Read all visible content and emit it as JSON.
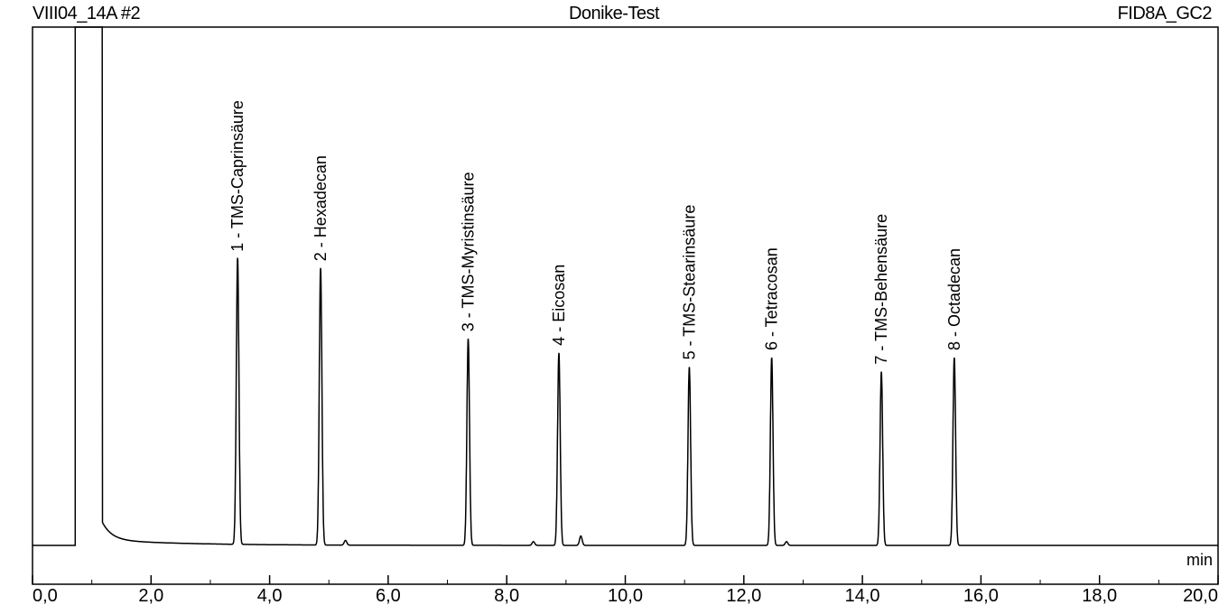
{
  "header": {
    "left": "VIII04_14A #2",
    "center": "Donike-Test",
    "right": "FID8A_GC2"
  },
  "chart_data": {
    "type": "line",
    "title": "Donike-Test",
    "xlabel": "min",
    "ylabel": "",
    "xlim": [
      0,
      20
    ],
    "x_ticks": [
      "0,0",
      "2,0",
      "4,0",
      "6,0",
      "8,0",
      "10,0",
      "12,0",
      "14,0",
      "16,0",
      "18,0",
      "20,0"
    ],
    "grid": false,
    "legend": "none",
    "series": [
      {
        "color": "#000000",
        "solvent_peak": {
          "start_min": 0.72,
          "apex_min": 1.15,
          "height_rel": 1.25
        },
        "peaks": [
          {
            "number": "1",
            "name": "TMS-Caprinsäure",
            "rt_min": 3.46,
            "height_rel": 0.61
          },
          {
            "number": "2",
            "name": "Hexadecan",
            "rt_min": 4.86,
            "height_rel": 0.59
          },
          {
            "number": "3",
            "name": "TMS-Myristinsäure",
            "rt_min": 7.35,
            "height_rel": 0.44
          },
          {
            "number": "4",
            "name": "Eicosan",
            "rt_min": 8.88,
            "height_rel": 0.41
          },
          {
            "number": "5",
            "name": "TMS-Stearinsäure",
            "rt_min": 11.08,
            "height_rel": 0.38
          },
          {
            "number": "6",
            "name": "Tetracosan",
            "rt_min": 12.47,
            "height_rel": 0.4
          },
          {
            "number": "7",
            "name": "TMS-Behensäure",
            "rt_min": 14.32,
            "height_rel": 0.37
          },
          {
            "number": "8",
            "name": "Octadecan",
            "rt_min": 15.55,
            "height_rel": 0.4
          }
        ],
        "minor_peaks": [
          {
            "rt_min": 5.28,
            "height_rel": 0.01
          },
          {
            "rt_min": 8.45,
            "height_rel": 0.008
          },
          {
            "rt_min": 9.25,
            "height_rel": 0.02
          },
          {
            "rt_min": 12.72,
            "height_rel": 0.008
          }
        ]
      }
    ]
  }
}
